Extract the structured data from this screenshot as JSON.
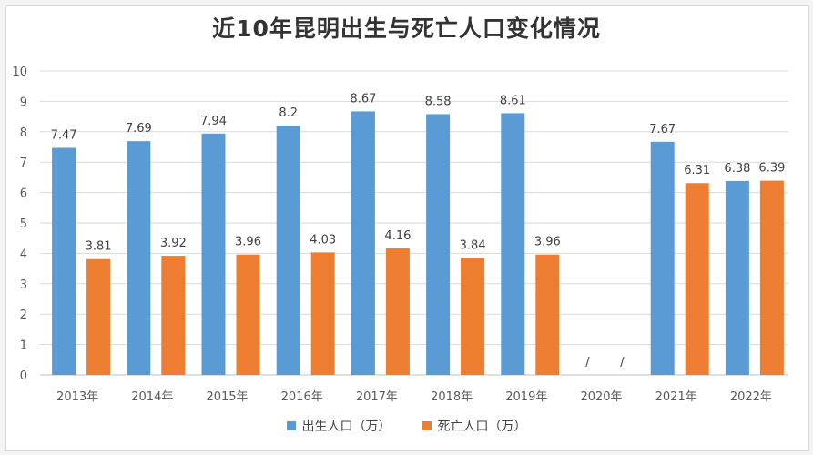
{
  "chart_data": {
    "type": "bar",
    "title": "近10年昆明出生与死亡人口变化情况",
    "categories": [
      "2013年",
      "2014年",
      "2015年",
      "2016年",
      "2017年",
      "2018年",
      "2019年",
      "2020年",
      "2021年",
      "2022年"
    ],
    "series": [
      {
        "name": "出生人口（万）",
        "color": "#5b9bd5",
        "values": [
          7.47,
          7.69,
          7.94,
          8.2,
          8.67,
          8.58,
          8.61,
          null,
          7.67,
          6.38
        ],
        "labels": [
          "7.47",
          "7.69",
          "7.94",
          "8.2",
          "8.67",
          "8.58",
          "8.61",
          "/",
          "7.67",
          "6.38"
        ]
      },
      {
        "name": "死亡人口（万）",
        "color": "#ed7d31",
        "values": [
          3.81,
          3.92,
          3.96,
          4.03,
          4.16,
          3.84,
          3.96,
          null,
          6.31,
          6.39
        ],
        "labels": [
          "3.81",
          "3.92",
          "3.96",
          "4.03",
          "4.16",
          "3.84",
          "3.96",
          "/",
          "6.31",
          "6.39"
        ]
      }
    ],
    "ylim": [
      0,
      10
    ],
    "yticks": [
      "0",
      "1",
      "2",
      "3",
      "4",
      "5",
      "6",
      "7",
      "8",
      "9",
      "10"
    ],
    "grid": true,
    "legend": "bottom"
  }
}
